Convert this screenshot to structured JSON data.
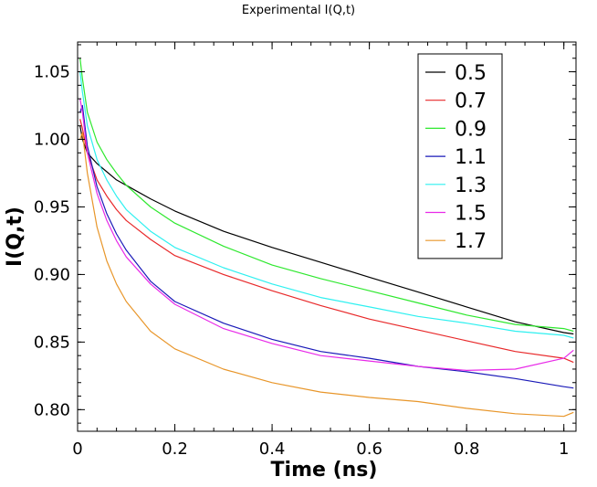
{
  "chart_data": {
    "type": "line",
    "title": "Experimental I(Q,t)",
    "xlabel": "Time (ns)",
    "ylabel": "I(Q,t)",
    "xlim": [
      0,
      1.025
    ],
    "ylim": [
      0.784,
      1.072
    ],
    "xticks": [
      "0",
      "0.2",
      "0.4",
      "0.6",
      "0.8",
      "1"
    ],
    "xtick_values": [
      0,
      0.2,
      0.4,
      0.6,
      0.8,
      1.0
    ],
    "yticks": [
      "0.80",
      "0.85",
      "0.90",
      "0.95",
      "1.00",
      "1.05"
    ],
    "ytick_values": [
      0.8,
      0.85,
      0.9,
      0.95,
      1.0,
      1.05
    ],
    "grid": false,
    "legend_position": "top-right",
    "series": [
      {
        "name": "0.5",
        "color": "#000000",
        "x": [
          0.005,
          0.01,
          0.02,
          0.04,
          0.06,
          0.08,
          0.1,
          0.15,
          0.2,
          0.3,
          0.4,
          0.5,
          0.6,
          0.7,
          0.8,
          0.9,
          1.0,
          1.02
        ],
        "y": [
          1.01,
          1.0,
          0.99,
          0.982,
          0.976,
          0.97,
          0.966,
          0.956,
          0.947,
          0.932,
          0.92,
          0.909,
          0.898,
          0.887,
          0.876,
          0.865,
          0.857,
          0.856
        ]
      },
      {
        "name": "0.7",
        "color": "#e8292a",
        "x": [
          0.005,
          0.01,
          0.02,
          0.04,
          0.06,
          0.08,
          0.1,
          0.15,
          0.2,
          0.3,
          0.4,
          0.5,
          0.6,
          0.7,
          0.8,
          0.9,
          1.0,
          1.02
        ],
        "y": [
          1.015,
          1.008,
          0.99,
          0.97,
          0.958,
          0.948,
          0.94,
          0.926,
          0.914,
          0.9,
          0.888,
          0.877,
          0.867,
          0.859,
          0.851,
          0.843,
          0.838,
          0.835
        ]
      },
      {
        "name": "0.9",
        "color": "#2ee82e",
        "x": [
          0.005,
          0.01,
          0.02,
          0.04,
          0.06,
          0.08,
          0.1,
          0.15,
          0.2,
          0.3,
          0.4,
          0.5,
          0.6,
          0.7,
          0.8,
          0.9,
          1.0,
          1.02
        ],
        "y": [
          1.06,
          1.045,
          1.02,
          0.998,
          0.985,
          0.975,
          0.966,
          0.95,
          0.938,
          0.921,
          0.907,
          0.897,
          0.888,
          0.879,
          0.87,
          0.863,
          0.86,
          0.858
        ]
      },
      {
        "name": "1.1",
        "color": "#1a1ab8",
        "x": [
          0.005,
          0.01,
          0.02,
          0.04,
          0.06,
          0.08,
          0.1,
          0.15,
          0.2,
          0.3,
          0.4,
          0.5,
          0.6,
          0.7,
          0.8,
          0.9,
          1.0,
          1.02
        ],
        "y": [
          1.02,
          1.025,
          0.995,
          0.965,
          0.945,
          0.93,
          0.918,
          0.895,
          0.88,
          0.864,
          0.852,
          0.843,
          0.838,
          0.832,
          0.828,
          0.823,
          0.817,
          0.816
        ]
      },
      {
        "name": "1.3",
        "color": "#2ef0f0",
        "x": [
          0.005,
          0.01,
          0.02,
          0.04,
          0.06,
          0.08,
          0.1,
          0.15,
          0.2,
          0.3,
          0.4,
          0.5,
          0.6,
          0.7,
          0.8,
          0.9,
          1.0,
          1.02
        ],
        "y": [
          1.05,
          1.035,
          1.01,
          0.985,
          0.97,
          0.958,
          0.948,
          0.932,
          0.92,
          0.905,
          0.893,
          0.883,
          0.876,
          0.869,
          0.864,
          0.858,
          0.855,
          0.853
        ]
      },
      {
        "name": "1.5",
        "color": "#e82ae8",
        "x": [
          0.005,
          0.01,
          0.02,
          0.04,
          0.06,
          0.08,
          0.1,
          0.15,
          0.2,
          0.3,
          0.4,
          0.5,
          0.6,
          0.7,
          0.8,
          0.9,
          1.0,
          1.02
        ],
        "y": [
          1.03,
          1.02,
          0.99,
          0.96,
          0.94,
          0.925,
          0.913,
          0.893,
          0.878,
          0.86,
          0.849,
          0.84,
          0.836,
          0.832,
          0.829,
          0.83,
          0.838,
          0.844
        ]
      },
      {
        "name": "1.7",
        "color": "#e8962a",
        "x": [
          0.005,
          0.01,
          0.02,
          0.04,
          0.06,
          0.08,
          0.1,
          0.15,
          0.2,
          0.3,
          0.4,
          0.5,
          0.6,
          0.7,
          0.8,
          0.9,
          1.0,
          1.02
        ],
        "y": [
          1.0,
          1.005,
          0.975,
          0.935,
          0.91,
          0.893,
          0.88,
          0.858,
          0.845,
          0.83,
          0.82,
          0.813,
          0.809,
          0.806,
          0.801,
          0.797,
          0.795,
          0.798
        ]
      }
    ]
  }
}
